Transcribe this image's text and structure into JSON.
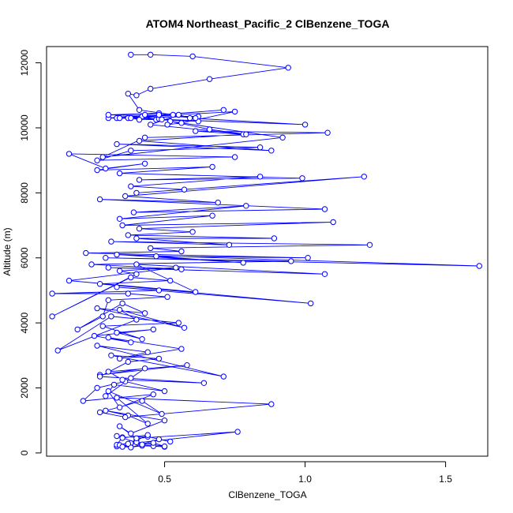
{
  "chart_data": {
    "type": "line",
    "title": "ATOM4 Northeast_Pacific_2 ClBenzene_TOGA",
    "xlabel": "ClBenzene_TOGA",
    "ylabel": "Altitude (m)",
    "xlim": [
      0.08,
      1.65
    ],
    "ylim": [
      -100,
      12500
    ],
    "x_ticks": [
      0.5,
      1.0,
      1.5
    ],
    "x_tick_labels": [
      "0.5",
      "1.0",
      "1.5"
    ],
    "y_ticks": [
      0,
      2000,
      4000,
      6000,
      8000,
      10000,
      12000
    ],
    "y_tick_labels": [
      "0",
      "2000",
      "4000",
      "6000",
      "8000",
      "10000",
      "12000"
    ],
    "grid": false,
    "legend": "none",
    "line_color": "#0000ff",
    "marker": "open-circle",
    "series": [
      {
        "x": [
          0.33,
          0.38,
          0.42,
          0.5,
          0.46,
          0.38,
          0.33,
          0.35,
          0.44,
          0.52,
          0.48,
          0.38,
          0.34,
          0.4,
          0.44,
          0.35,
          0.33,
          0.42,
          0.46,
          0.5,
          0.4,
          0.35,
          0.37,
          0.76,
          0.4,
          0.34,
          0.38,
          0.5,
          0.29,
          0.37,
          0.44,
          0.33,
          0.88,
          0.36,
          0.27,
          0.42,
          0.49,
          0.3,
          0.34,
          0.46,
          0.21,
          0.26,
          0.36,
          0.5,
          0.32,
          0.29,
          0.38,
          0.43,
          0.27,
          0.58,
          0.3,
          0.35,
          0.64,
          0.27,
          0.37,
          0.48,
          0.31,
          0.71,
          0.26,
          0.44,
          0.34,
          0.56,
          0.3,
          0.38,
          0.25,
          0.46,
          0.33,
          0.42,
          0.28,
          0.55,
          0.31,
          0.12,
          0.4,
          0.34,
          0.57,
          0.26,
          0.43,
          0.35,
          0.19,
          0.28,
          0.3,
          0.51,
          0.37,
          0.1,
          0.48,
          0.33,
          1.02,
          0.27,
          0.52,
          0.38,
          0.1,
          0.4,
          0.34,
          0.54,
          0.16,
          0.61,
          0.4,
          1.07,
          0.3,
          0.56,
          0.24,
          0.95,
          0.29,
          1.62,
          0.33,
          0.78,
          0.47,
          1.01,
          0.22,
          0.56,
          0.45,
          1.23,
          0.31,
          0.73,
          0.4,
          0.89,
          0.37,
          0.6,
          0.41,
          1.1,
          0.35,
          0.67,
          0.34,
          0.79,
          0.39,
          1.07,
          0.27,
          0.69,
          0.36,
          1.21,
          0.4,
          0.57,
          0.38,
          0.84,
          0.41,
          0.99,
          0.34,
          0.67,
          0.26,
          0.43,
          0.29,
          0.16,
          0.75,
          0.26,
          0.38,
          0.84,
          0.33,
          0.88,
          0.41,
          0.78,
          0.61,
          1.08,
          0.43,
          0.28,
          0.92,
          0.52,
          0.66,
          0.79,
          0.45,
          0.55,
          0.59,
          1.0,
          0.37,
          0.62,
          0.47,
          0.42,
          0.43,
          0.3,
          0.48,
          0.49,
          0.41,
          0.38,
          0.53,
          0.51,
          0.56,
          0.75,
          0.33,
          0.62,
          0.3,
          0.48,
          0.34,
          0.71,
          0.48,
          0.61,
          0.41,
          0.37,
          0.4,
          0.45,
          0.66,
          0.94,
          0.6,
          0.45,
          0.38
        ],
        "y": [
          200,
          180,
          220,
          190,
          210,
          300,
          250,
          480,
          500,
          350,
          420,
          170,
          240,
          380,
          550,
          460,
          520,
          260,
          310,
          200,
          330,
          190,
          280,
          650,
          450,
          820,
          600,
          1000,
          1300,
          1150,
          900,
          1700,
          1500,
          1100,
          1250,
          1600,
          1200,
          1900,
          1400,
          1800,
          1600,
          2000,
          2200,
          1900,
          2100,
          1750,
          2300,
          2600,
          2400,
          2700,
          2500,
          2250,
          2150,
          2350,
          2800,
          2900,
          3000,
          2350,
          3300,
          3100,
          2900,
          3200,
          3550,
          3400,
          3600,
          3800,
          3700,
          3500,
          3900,
          4000,
          4200,
          3150,
          4100,
          4400,
          3850,
          4450,
          4300,
          4600,
          3800,
          4200,
          4700,
          4800,
          4900,
          4900,
          5000,
          5100,
          4600,
          5200,
          5300,
          5400,
          4200,
          5500,
          5600,
          5700,
          5300,
          4950,
          5800,
          5500,
          5700,
          5650,
          5800,
          5900,
          6000,
          5750,
          6100,
          5850,
          6050,
          6000,
          6150,
          6200,
          6300,
          6400,
          6500,
          6400,
          6600,
          6600,
          6700,
          6800,
          6900,
          7100,
          7000,
          7300,
          7200,
          7600,
          7400,
          7500,
          7800,
          7700,
          7900,
          8500,
          8000,
          8100,
          8200,
          8500,
          8400,
          8450,
          8600,
          8800,
          8700,
          8900,
          8750,
          9200,
          9100,
          9000,
          9300,
          9400,
          9500,
          9300,
          9600,
          9800,
          9900,
          9850,
          9700,
          9100,
          9700,
          10200,
          9950,
          9800,
          10100,
          10400,
          10300,
          10100,
          10300,
          10200,
          10250,
          10350,
          10400,
          10300,
          10280,
          10260,
          10250,
          10300,
          10400,
          10100,
          10150,
          10500,
          10300,
          10350,
          10400,
          10450,
          10300,
          10550,
          10400,
          10300,
          10550,
          11050,
          11000,
          11200,
          11500,
          11850,
          12200,
          12250,
          12250
        ]
      }
    ]
  }
}
